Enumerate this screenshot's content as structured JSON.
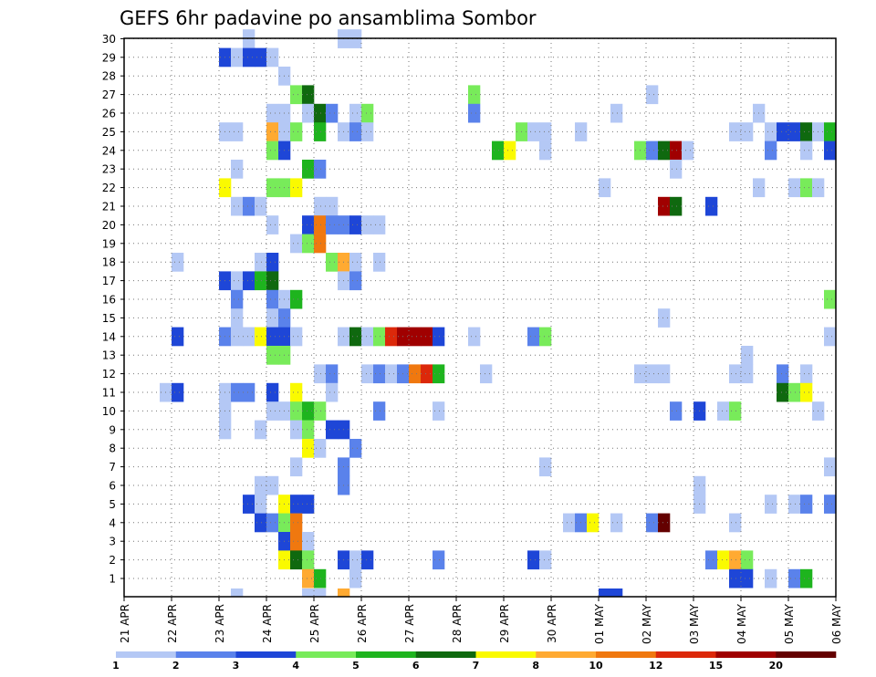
{
  "chart_data": {
    "type": "heatmap",
    "title": "GEFS 6hr padavine po ansamblima Sombor",
    "xlabel": "",
    "ylabel": "",
    "x_ticks": [
      "21 APR",
      "22 APR",
      "23 APR",
      "24 APR",
      "25 APR",
      "26 APR",
      "27 APR",
      "28 APR",
      "29 APR",
      "30 APR",
      "01 MAY",
      "02 MAY",
      "03 MAY",
      "04 MAY",
      "05 MAY",
      "06 MAY"
    ],
    "y_ticks": [
      "1",
      "2",
      "3",
      "4",
      "5",
      "6",
      "7",
      "8",
      "9",
      "10",
      "11",
      "12",
      "13",
      "14",
      "15",
      "16",
      "17",
      "18",
      "19",
      "20",
      "21",
      "22",
      "23",
      "24",
      "25",
      "26",
      "27",
      "28",
      "29",
      "30"
    ],
    "x_steps_per_day": 4,
    "grid": true,
    "legend": {
      "position": "bottom",
      "labels": [
        "1",
        "2",
        "3",
        "4",
        "5",
        "6",
        "7",
        "8",
        "10",
        "12",
        "15",
        "20"
      ],
      "colors": [
        "#b4c8f5",
        "#5a82eb",
        "#1e46d7",
        "#78eb5a",
        "#1eb41e",
        "#0f690f",
        "#fafa00",
        "#ffaa32",
        "#f0780f",
        "#dc280a",
        "#a00000",
        "#640000"
      ]
    },
    "cells": [
      [
        30,
        10,
        1
      ],
      [
        30,
        18,
        1
      ],
      [
        30,
        19,
        1
      ],
      [
        29,
        8,
        3
      ],
      [
        29,
        9,
        1
      ],
      [
        29,
        10,
        3
      ],
      [
        29,
        11,
        3
      ],
      [
        29,
        12,
        1
      ],
      [
        28,
        13,
        1
      ],
      [
        27,
        14,
        4
      ],
      [
        27,
        15,
        6
      ],
      [
        27,
        29,
        4
      ],
      [
        27,
        44,
        1
      ],
      [
        26,
        12,
        1
      ],
      [
        26,
        13,
        1
      ],
      [
        26,
        15,
        1
      ],
      [
        26,
        16,
        6
      ],
      [
        26,
        17,
        2
      ],
      [
        26,
        19,
        1
      ],
      [
        26,
        20,
        4
      ],
      [
        26,
        29,
        2
      ],
      [
        26,
        41,
        1
      ],
      [
        26,
        53,
        1
      ],
      [
        25,
        8,
        1
      ],
      [
        25,
        9,
        1
      ],
      [
        25,
        12,
        8
      ],
      [
        25,
        13,
        1
      ],
      [
        25,
        14,
        4
      ],
      [
        25,
        16,
        5
      ],
      [
        25,
        18,
        1
      ],
      [
        25,
        19,
        2
      ],
      [
        25,
        20,
        1
      ],
      [
        25,
        33,
        4
      ],
      [
        25,
        34,
        1
      ],
      [
        25,
        35,
        1
      ],
      [
        25,
        38,
        1
      ],
      [
        25,
        51,
        1
      ],
      [
        25,
        52,
        1
      ],
      [
        25,
        54,
        1
      ],
      [
        25,
        55,
        3
      ],
      [
        25,
        56,
        3
      ],
      [
        25,
        57,
        6
      ],
      [
        25,
        58,
        1
      ],
      [
        25,
        59,
        5
      ],
      [
        24,
        12,
        4
      ],
      [
        24,
        13,
        3
      ],
      [
        24,
        31,
        5
      ],
      [
        24,
        32,
        7
      ],
      [
        24,
        35,
        1
      ],
      [
        24,
        43,
        4
      ],
      [
        24,
        44,
        2
      ],
      [
        24,
        45,
        6
      ],
      [
        24,
        46,
        11
      ],
      [
        24,
        47,
        1
      ],
      [
        24,
        54,
        2
      ],
      [
        24,
        57,
        1
      ],
      [
        24,
        59,
        3
      ],
      [
        23,
        9,
        1
      ],
      [
        23,
        15,
        5
      ],
      [
        23,
        16,
        2
      ],
      [
        23,
        46,
        1
      ],
      [
        22,
        8,
        7
      ],
      [
        22,
        12,
        4
      ],
      [
        22,
        13,
        4
      ],
      [
        22,
        14,
        7
      ],
      [
        22,
        40,
        1
      ],
      [
        22,
        53,
        1
      ],
      [
        22,
        56,
        1
      ],
      [
        22,
        57,
        4
      ],
      [
        22,
        58,
        1
      ],
      [
        21,
        9,
        1
      ],
      [
        21,
        10,
        2
      ],
      [
        21,
        11,
        1
      ],
      [
        21,
        16,
        1
      ],
      [
        21,
        17,
        1
      ],
      [
        21,
        45,
        11
      ],
      [
        21,
        46,
        6
      ],
      [
        21,
        49,
        3
      ],
      [
        20,
        12,
        1
      ],
      [
        20,
        15,
        3
      ],
      [
        20,
        16,
        9
      ],
      [
        20,
        17,
        2
      ],
      [
        20,
        18,
        2
      ],
      [
        20,
        19,
        3
      ],
      [
        20,
        20,
        1
      ],
      [
        20,
        21,
        1
      ],
      [
        19,
        14,
        1
      ],
      [
        19,
        15,
        4
      ],
      [
        19,
        16,
        9
      ],
      [
        18,
        4,
        1
      ],
      [
        18,
        11,
        1
      ],
      [
        18,
        12,
        3
      ],
      [
        18,
        17,
        4
      ],
      [
        18,
        18,
        8
      ],
      [
        18,
        19,
        1
      ],
      [
        18,
        21,
        1
      ],
      [
        17,
        8,
        3
      ],
      [
        17,
        9,
        1
      ],
      [
        17,
        10,
        3
      ],
      [
        17,
        11,
        5
      ],
      [
        17,
        12,
        6
      ],
      [
        17,
        18,
        1
      ],
      [
        17,
        19,
        2
      ],
      [
        16,
        9,
        2
      ],
      [
        16,
        12,
        2
      ],
      [
        16,
        13,
        1
      ],
      [
        16,
        14,
        5
      ],
      [
        16,
        59,
        4
      ],
      [
        15,
        9,
        1
      ],
      [
        15,
        12,
        1
      ],
      [
        15,
        13,
        2
      ],
      [
        15,
        45,
        1
      ],
      [
        14,
        4,
        3
      ],
      [
        14,
        8,
        2
      ],
      [
        14,
        9,
        1
      ],
      [
        14,
        10,
        1
      ],
      [
        14,
        11,
        7
      ],
      [
        14,
        12,
        3
      ],
      [
        14,
        13,
        3
      ],
      [
        14,
        14,
        1
      ],
      [
        14,
        18,
        1
      ],
      [
        14,
        19,
        6
      ],
      [
        14,
        20,
        1
      ],
      [
        14,
        21,
        4
      ],
      [
        14,
        22,
        10
      ],
      [
        14,
        23,
        11
      ],
      [
        14,
        24,
        11
      ],
      [
        14,
        25,
        11
      ],
      [
        14,
        26,
        3
      ],
      [
        14,
        29,
        1
      ],
      [
        14,
        34,
        2
      ],
      [
        14,
        35,
        4
      ],
      [
        14,
        59,
        1
      ],
      [
        13,
        12,
        4
      ],
      [
        13,
        13,
        4
      ],
      [
        13,
        52,
        1
      ],
      [
        12,
        16,
        1
      ],
      [
        12,
        17,
        2
      ],
      [
        12,
        20,
        1
      ],
      [
        12,
        21,
        2
      ],
      [
        12,
        22,
        1
      ],
      [
        12,
        23,
        2
      ],
      [
        12,
        24,
        9
      ],
      [
        12,
        25,
        10
      ],
      [
        12,
        26,
        5
      ],
      [
        12,
        30,
        1
      ],
      [
        12,
        43,
        1
      ],
      [
        12,
        44,
        1
      ],
      [
        12,
        45,
        1
      ],
      [
        12,
        51,
        1
      ],
      [
        12,
        52,
        1
      ],
      [
        12,
        55,
        2
      ],
      [
        12,
        57,
        1
      ],
      [
        11,
        3,
        1
      ],
      [
        11,
        4,
        3
      ],
      [
        11,
        8,
        1
      ],
      [
        11,
        9,
        2
      ],
      [
        11,
        10,
        2
      ],
      [
        11,
        12,
        3
      ],
      [
        11,
        14,
        7
      ],
      [
        11,
        17,
        1
      ],
      [
        11,
        55,
        6
      ],
      [
        11,
        56,
        4
      ],
      [
        11,
        57,
        7
      ],
      [
        10,
        8,
        1
      ],
      [
        10,
        12,
        1
      ],
      [
        10,
        13,
        1
      ],
      [
        10,
        14,
        4
      ],
      [
        10,
        15,
        5
      ],
      [
        10,
        16,
        4
      ],
      [
        10,
        21,
        2
      ],
      [
        10,
        26,
        1
      ],
      [
        10,
        46,
        2
      ],
      [
        10,
        48,
        3
      ],
      [
        10,
        50,
        1
      ],
      [
        10,
        51,
        4
      ],
      [
        10,
        58,
        1
      ],
      [
        9,
        8,
        1
      ],
      [
        9,
        11,
        1
      ],
      [
        9,
        14,
        1
      ],
      [
        9,
        15,
        4
      ],
      [
        9,
        17,
        3
      ],
      [
        9,
        18,
        3
      ],
      [
        8,
        15,
        7
      ],
      [
        8,
        16,
        1
      ],
      [
        8,
        19,
        2
      ],
      [
        7,
        14,
        1
      ],
      [
        7,
        18,
        2
      ],
      [
        7,
        35,
        1
      ],
      [
        7,
        59,
        1
      ],
      [
        6,
        11,
        1
      ],
      [
        6,
        12,
        1
      ],
      [
        6,
        18,
        2
      ],
      [
        6,
        48,
        1
      ],
      [
        5,
        10,
        3
      ],
      [
        5,
        11,
        1
      ],
      [
        5,
        13,
        7
      ],
      [
        5,
        14,
        3
      ],
      [
        5,
        15,
        3
      ],
      [
        5,
        48,
        1
      ],
      [
        5,
        54,
        1
      ],
      [
        5,
        56,
        1
      ],
      [
        5,
        57,
        2
      ],
      [
        5,
        59,
        2
      ],
      [
        4,
        11,
        3
      ],
      [
        4,
        12,
        2
      ],
      [
        4,
        13,
        4
      ],
      [
        4,
        14,
        9
      ],
      [
        4,
        37,
        1
      ],
      [
        4,
        38,
        2
      ],
      [
        4,
        39,
        7
      ],
      [
        4,
        41,
        1
      ],
      [
        4,
        44,
        2
      ],
      [
        4,
        45,
        12
      ],
      [
        4,
        51,
        1
      ],
      [
        3,
        13,
        3
      ],
      [
        3,
        14,
        9
      ],
      [
        3,
        15,
        1
      ],
      [
        2,
        13,
        7
      ],
      [
        2,
        14,
        6
      ],
      [
        2,
        15,
        4
      ],
      [
        2,
        18,
        3
      ],
      [
        2,
        19,
        1
      ],
      [
        2,
        20,
        3
      ],
      [
        2,
        26,
        2
      ],
      [
        2,
        34,
        3
      ],
      [
        2,
        35,
        1
      ],
      [
        2,
        49,
        2
      ],
      [
        2,
        50,
        7
      ],
      [
        2,
        51,
        8
      ],
      [
        2,
        52,
        4
      ],
      [
        1,
        15,
        8
      ],
      [
        1,
        16,
        5
      ],
      [
        1,
        19,
        1
      ],
      [
        1,
        51,
        3
      ],
      [
        1,
        52,
        3
      ],
      [
        1,
        54,
        1
      ],
      [
        1,
        56,
        2
      ],
      [
        1,
        57,
        5
      ]
    ],
    "below_axis_cells": [
      [
        9,
        1
      ],
      [
        15,
        1
      ],
      [
        16,
        1
      ],
      [
        18,
        8
      ],
      [
        40,
        3
      ],
      [
        41,
        3
      ]
    ]
  }
}
